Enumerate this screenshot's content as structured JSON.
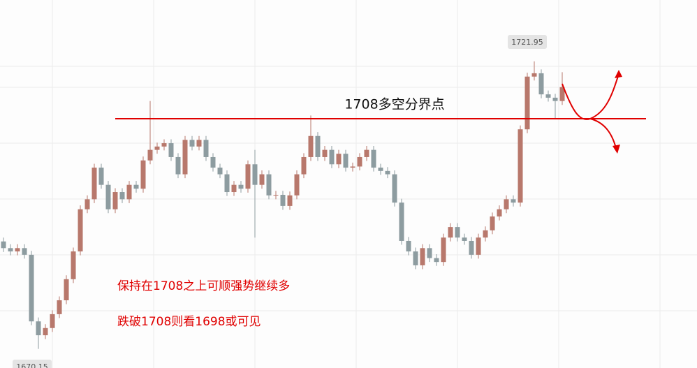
{
  "chart_data": {
    "type": "candlestick",
    "up_color": "#b8786c",
    "down_color": "#8d9ca0",
    "ylim": [
      1666.7,
      1733
    ],
    "open": [
      1689.5,
      1688.3,
      1687.7,
      1688.3,
      1687.1,
      1675.1,
      1672.6,
      1673.9,
      1676.4,
      1678.9,
      1682.7,
      1687.7,
      1695.3,
      1697.1,
      1702.8,
      1699.7,
      1695.3,
      1698.4,
      1697.1,
      1699.7,
      1699.0,
      1704.1,
      1706.0,
      1706.6,
      1707.2,
      1704.7,
      1701.6,
      1707.8,
      1706.6,
      1707.8,
      1704.7,
      1702.8,
      1701.6,
      1698.4,
      1699.7,
      1699.0,
      1703.4,
      1699.7,
      1701.6,
      1697.8,
      1697.9,
      1695.9,
      1697.8,
      1701.6,
      1704.7,
      1708.5,
      1704.7,
      1706.0,
      1703.4,
      1705.3,
      1702.8,
      1703.0,
      1704.7,
      1706.0,
      1702.8,
      1702.2,
      1701.6,
      1696.5,
      1689.6,
      1687.7,
      1685.2,
      1688.3,
      1686.5,
      1685.8,
      1690.2,
      1692.1,
      1690.2,
      1689.6,
      1687.1,
      1690.2,
      1691.5,
      1694.0,
      1695.3,
      1697.1,
      1696.5,
      1709.7,
      1719.2,
      1719.8,
      1716.0,
      1715.4,
      1714.8
    ],
    "high": [
      1690.2,
      1689.0,
      1689.0,
      1689.0,
      1687.8,
      1675.8,
      1674.6,
      1677.1,
      1679.6,
      1683.4,
      1688.4,
      1696.0,
      1697.8,
      1703.5,
      1703.5,
      1700.4,
      1699.1,
      1699.1,
      1700.4,
      1700.4,
      1704.8,
      1714.8,
      1707.3,
      1707.9,
      1707.9,
      1705.4,
      1708.5,
      1708.5,
      1708.5,
      1708.5,
      1705.4,
      1703.5,
      1702.3,
      1700.4,
      1700.4,
      1704.1,
      1706.0,
      1702.3,
      1702.3,
      1698.6,
      1698.6,
      1698.5,
      1702.3,
      1705.4,
      1712.2,
      1709.2,
      1706.7,
      1706.7,
      1706.0,
      1706.0,
      1703.7,
      1705.4,
      1706.7,
      1706.7,
      1703.5,
      1702.9,
      1702.3,
      1697.2,
      1690.3,
      1688.4,
      1689.0,
      1689.0,
      1687.2,
      1690.9,
      1692.8,
      1692.8,
      1690.9,
      1690.3,
      1690.9,
      1692.2,
      1694.7,
      1696.0,
      1697.8,
      1697.8,
      1710.4,
      1719.9,
      1721.95,
      1720.5,
      1716.7,
      1716.1,
      1720.0
    ],
    "low": [
      1687.6,
      1687.0,
      1687.0,
      1686.4,
      1674.4,
      1670.15,
      1671.9,
      1673.2,
      1675.7,
      1678.2,
      1682.0,
      1687.0,
      1694.6,
      1696.4,
      1699.0,
      1694.6,
      1694.6,
      1696.4,
      1696.4,
      1698.3,
      1698.3,
      1703.4,
      1705.3,
      1705.9,
      1704.0,
      1700.9,
      1700.9,
      1705.9,
      1705.9,
      1704.0,
      1702.1,
      1700.9,
      1697.7,
      1697.7,
      1698.3,
      1698.3,
      1690.2,
      1699.0,
      1697.1,
      1697.1,
      1695.2,
      1695.2,
      1697.1,
      1700.9,
      1704.0,
      1704.0,
      1704.0,
      1702.7,
      1702.7,
      1702.1,
      1702.1,
      1702.3,
      1704.0,
      1702.1,
      1701.5,
      1700.9,
      1695.8,
      1688.9,
      1687.0,
      1684.5,
      1684.5,
      1685.8,
      1685.1,
      1685.1,
      1689.5,
      1689.5,
      1688.9,
      1686.4,
      1686.4,
      1689.5,
      1690.8,
      1693.3,
      1694.6,
      1695.8,
      1695.8,
      1709.0,
      1718.5,
      1715.3,
      1714.7,
      1711.6,
      1714.1
    ],
    "close": [
      1688.3,
      1687.7,
      1688.3,
      1687.1,
      1675.1,
      1672.6,
      1673.9,
      1676.4,
      1678.9,
      1682.7,
      1687.7,
      1695.3,
      1697.1,
      1702.8,
      1699.7,
      1695.3,
      1698.4,
      1697.1,
      1699.7,
      1699.0,
      1704.1,
      1706.0,
      1706.6,
      1707.2,
      1704.7,
      1701.6,
      1707.8,
      1706.6,
      1707.8,
      1704.7,
      1702.8,
      1701.6,
      1698.4,
      1699.7,
      1699.0,
      1703.4,
      1699.7,
      1701.6,
      1697.8,
      1697.9,
      1695.9,
      1697.8,
      1701.6,
      1704.7,
      1708.5,
      1704.7,
      1706.0,
      1703.4,
      1705.3,
      1702.8,
      1703.0,
      1704.7,
      1706.0,
      1702.8,
      1702.2,
      1701.6,
      1696.5,
      1689.6,
      1687.7,
      1685.2,
      1688.3,
      1686.5,
      1685.8,
      1690.2,
      1692.1,
      1690.2,
      1689.6,
      1687.1,
      1690.2,
      1691.5,
      1694.0,
      1695.3,
      1697.1,
      1696.5,
      1709.7,
      1719.2,
      1719.8,
      1716.0,
      1715.4,
      1714.8,
      1717.3
    ],
    "annotations": [
      "1708多空分界点",
      "保持在1708之上可顺强势继续多",
      "跌破1708则看1698或可见"
    ]
  }
}
